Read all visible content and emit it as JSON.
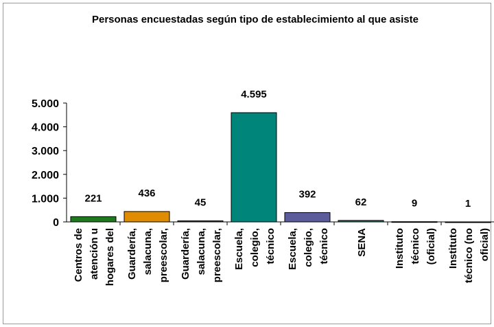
{
  "chart_data": {
    "type": "bar",
    "title": "Personas encuestadas según tipo de establecimiento al que asiste",
    "categories": [
      [
        "Centros de",
        "atención u",
        "hogares del"
      ],
      [
        "Guardería,",
        "salacuna,",
        "preescolar,"
      ],
      [
        "Guardería,",
        "salacuna,",
        "preescolar,"
      ],
      [
        "Escuela,",
        "colegio,",
        "técnico"
      ],
      [
        "Escuela,",
        "colegio,",
        "técnico"
      ],
      [
        "SENA"
      ],
      [
        "Instituto",
        "técnico",
        "(oficial)"
      ],
      [
        "Instituto",
        "técnico (no",
        "oficial)"
      ]
    ],
    "values": [
      221,
      436,
      45,
      4595,
      392,
      62,
      9,
      1
    ],
    "value_labels": [
      "221",
      "436",
      "45",
      "4.595",
      "392",
      "62",
      "9",
      "1"
    ],
    "colors": [
      "#1f7a1f",
      "#e08c00",
      "#4a4a4a",
      "#00857a",
      "#5c5c9c",
      "#2f6f6a",
      "#777777",
      "#777777"
    ],
    "ylim": [
      0,
      5000
    ],
    "yticks": [
      0,
      {
        "value": 1000,
        "label": "1.000"
      },
      {
        "value": 2000,
        "label": "2.000"
      },
      {
        "value": 3000,
        "label": "3.000"
      },
      {
        "value": 4000,
        "label": "4.000"
      },
      {
        "value": 5000,
        "label": "5.000"
      }
    ]
  }
}
